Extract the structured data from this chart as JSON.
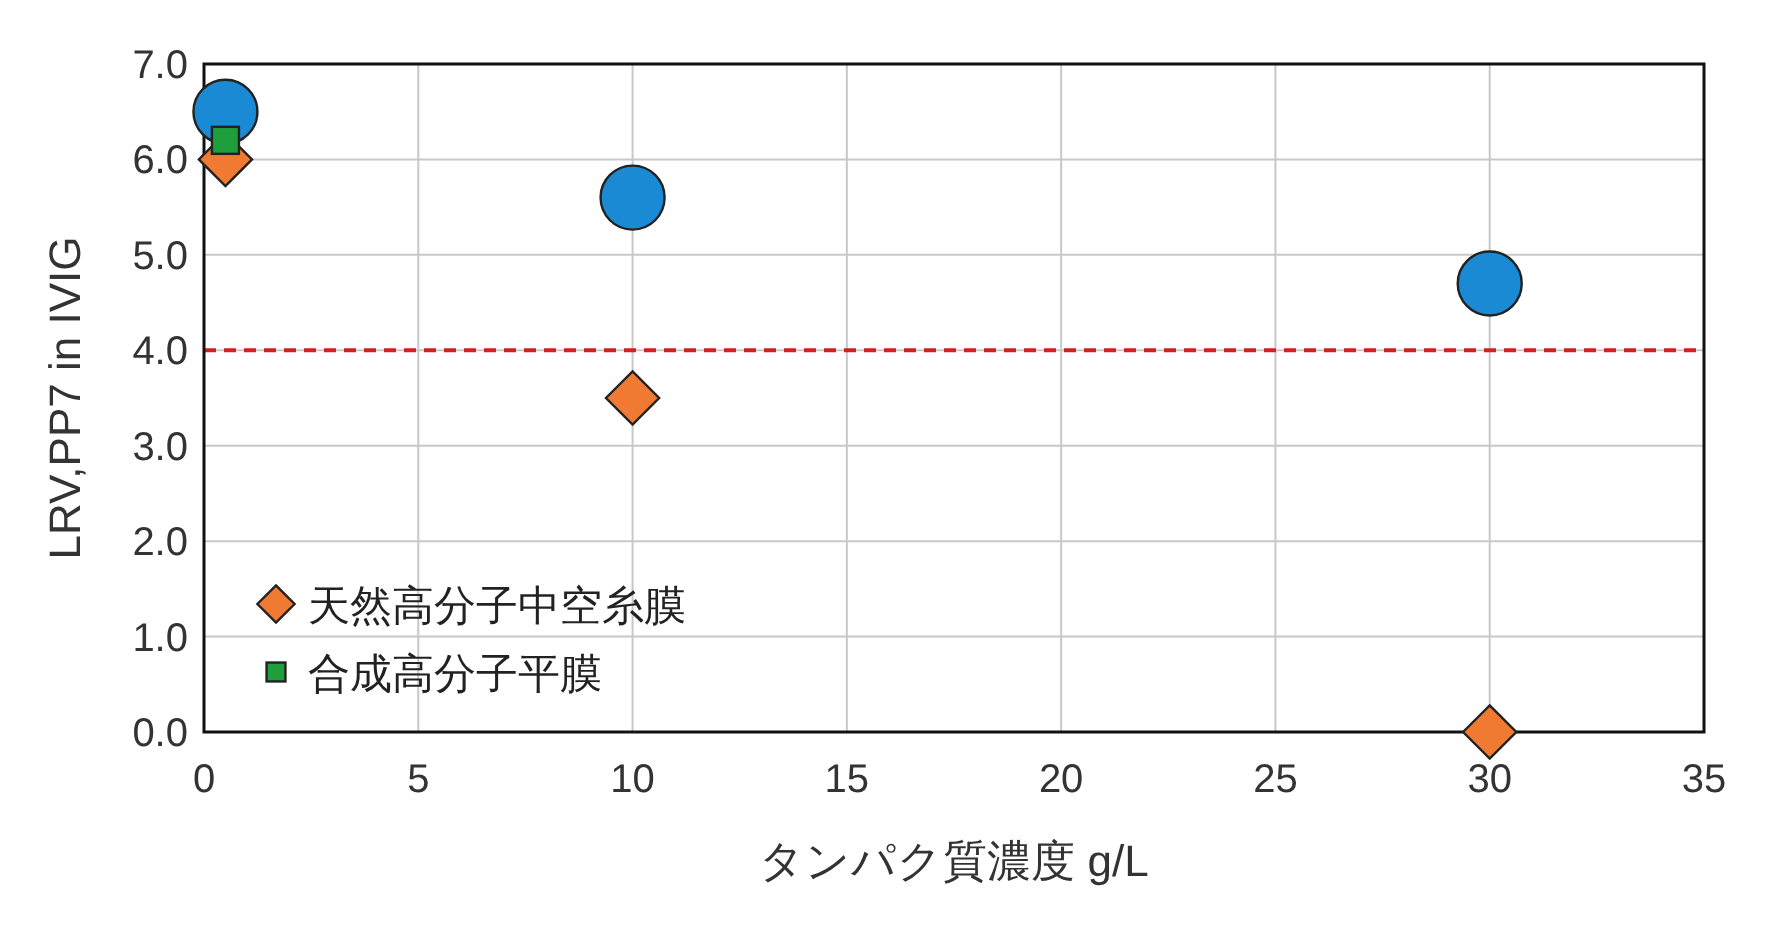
{
  "chart_data": {
    "type": "scatter",
    "xlabel": "タンパク質濃度 g/L",
    "ylabel": "LRV,PP7 in IVIG",
    "series": [
      {
        "color": "#1a8ad4",
        "marker": "circle",
        "x": [
          0.5,
          10,
          30
        ],
        "values": [
          6.5,
          5.6,
          4.7
        ]
      },
      {
        "name": "天然高分子中空糸膜",
        "color": "#f07a32",
        "marker": "diamond",
        "x": [
          0.5,
          10,
          30
        ],
        "values": [
          6.0,
          3.5,
          0.0
        ]
      },
      {
        "name": "合成高分子平膜",
        "color": "#1f9e3c",
        "marker": "square",
        "x": [
          0.5
        ],
        "values": [
          6.2
        ]
      }
    ],
    "xlim": [
      0,
      35
    ],
    "xticks": [
      0,
      5,
      10,
      15,
      20,
      25,
      30,
      35
    ],
    "ylim": [
      0,
      7
    ],
    "yticks": [
      {
        "value": 0,
        "label": "0.0"
      },
      {
        "value": 1,
        "label": "1.0"
      },
      {
        "value": 2,
        "label": "2.0"
      },
      {
        "value": 3,
        "label": "3.0"
      },
      {
        "value": 4,
        "label": "4.0"
      },
      {
        "value": 5,
        "label": "5.0"
      },
      {
        "value": 6,
        "label": "6.0"
      },
      {
        "value": 7,
        "label": "7.0"
      }
    ],
    "ref_lines": [
      {
        "axis": "y",
        "value": 4,
        "color": "#d42020",
        "line_style": "dashed"
      }
    ],
    "grid": true,
    "legend": "bottom left"
  }
}
